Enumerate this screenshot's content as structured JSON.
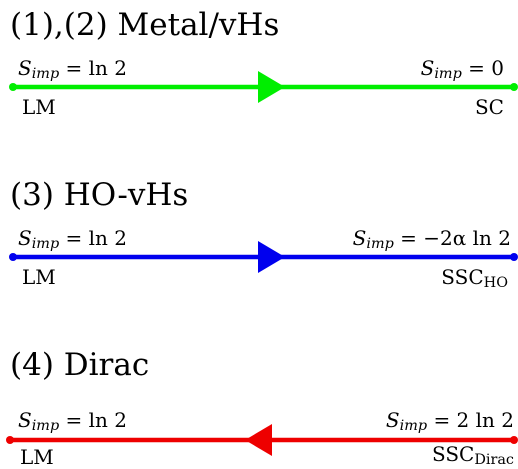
{
  "flows": [
    {
      "title": "(1),(2) Metal/vHs",
      "color": "#00ee00",
      "direction": "right",
      "left": {
        "entropy_sym": "S",
        "entropy_sub": "imp",
        "entropy_rhs": "= ln 2",
        "phase": "LM",
        "phase_sub": ""
      },
      "right": {
        "entropy_sym": "S",
        "entropy_sub": "imp",
        "entropy_rhs": "= 0",
        "phase": "SC",
        "phase_sub": ""
      }
    },
    {
      "title": "(3) HO-vHs",
      "color": "#0000ee",
      "direction": "right",
      "left": {
        "entropy_sym": "S",
        "entropy_sub": "imp",
        "entropy_rhs": "= ln 2",
        "phase": "LM",
        "phase_sub": ""
      },
      "right": {
        "entropy_sym": "S",
        "entropy_sub": "imp",
        "entropy_rhs": "= −2α ln 2",
        "phase": "SSC",
        "phase_sub": "HO"
      }
    },
    {
      "title": "(4) Dirac",
      "color": "#ee0000",
      "direction": "left",
      "left": {
        "entropy_sym": "S",
        "entropy_sub": "imp",
        "entropy_rhs": "= ln 2",
        "phase": "LM",
        "phase_sub": ""
      },
      "right": {
        "entropy_sym": "S",
        "entropy_sub": "imp",
        "entropy_rhs": "= 2 ln 2",
        "phase": "SSC",
        "phase_sub": "Dirac"
      }
    }
  ]
}
